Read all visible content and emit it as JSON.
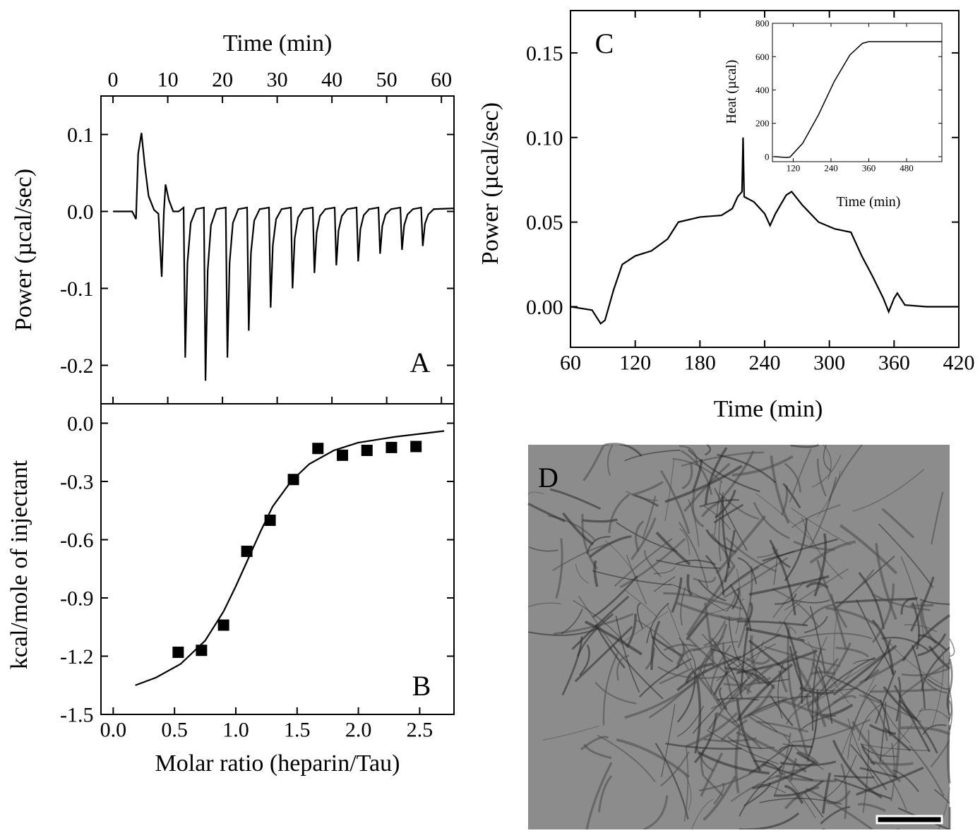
{
  "chart_data": [
    {
      "type": "line",
      "annotation": "A",
      "x_label": "Time (min)",
      "y_label": "Power (µcal/sec)",
      "xlim": [
        -2.2,
        62.3
      ],
      "xticks": [
        0,
        10,
        20,
        30,
        40,
        50,
        60
      ],
      "ylim": [
        -0.25,
        0.15
      ],
      "yticks": [
        0.1,
        {
          "value": 0,
          "label": "0.0"
        },
        -0.1,
        -0.2
      ],
      "series": [
        {
          "color": "#000000",
          "x": [
            0,
            3.5,
            4.2,
            4.6,
            5.2,
            5.8,
            6.5,
            7.5,
            8.3,
            8.9,
            9.3,
            9.6,
            10.2,
            11.0,
            12.0,
            12.9,
            13.2,
            13.6,
            14.2,
            15.2,
            16.6,
            16.9,
            17.3,
            17.9,
            18.9,
            20.6,
            20.9,
            21.3,
            21.9,
            22.9,
            24.5,
            24.8,
            25.2,
            25.8,
            26.8,
            28.5,
            28.8,
            29.2,
            29.8,
            30.8,
            32.5,
            32.8,
            33.2,
            33.8,
            34.8,
            36.5,
            36.8,
            37.2,
            37.8,
            38.8,
            40.5,
            40.8,
            41.2,
            41.8,
            42.8,
            44.5,
            44.8,
            45.2,
            45.8,
            46.8,
            48.5,
            48.8,
            49.2,
            49.8,
            50.8,
            52.5,
            52.8,
            53.2,
            53.8,
            54.8,
            56.3,
            56.6,
            57.0,
            57.6,
            58.6,
            62.3
          ],
          "values": [
            0,
            0,
            -0.01,
            0.075,
            0.102,
            0.06,
            0.02,
            0.002,
            -0.003,
            -0.085,
            0,
            0.035,
            0.015,
            0,
            0,
            0.005,
            -0.19,
            -0.067,
            -0.015,
            0.003,
            0.005,
            -0.22,
            -0.077,
            -0.018,
            0.003,
            0.005,
            -0.19,
            -0.067,
            -0.015,
            0.003,
            0.005,
            -0.155,
            -0.054,
            -0.012,
            0.003,
            0.005,
            -0.125,
            -0.044,
            -0.01,
            0.003,
            0.005,
            -0.1,
            -0.035,
            -0.008,
            0.003,
            0.005,
            -0.08,
            -0.028,
            -0.006,
            0.003,
            0.005,
            -0.07,
            -0.025,
            -0.006,
            0.003,
            0.005,
            -0.065,
            -0.023,
            -0.005,
            0.003,
            0.005,
            -0.055,
            -0.019,
            -0.004,
            0.003,
            0.005,
            -0.05,
            -0.018,
            -0.004,
            0.003,
            0.005,
            -0.045,
            -0.016,
            -0.004,
            0.003,
            0.004
          ]
        }
      ]
    },
    {
      "type": "scatter",
      "annotation": "B",
      "x_label": "Molar ratio (heparin/Tau)",
      "y_label": "kcal/mole of injectant",
      "xlim": [
        -0.1,
        2.78
      ],
      "xticks": [
        {
          "value": 0,
          "label": "0.0"
        },
        0.5,
        {
          "value": 1,
          "label": "1.0"
        },
        1.5,
        {
          "value": 2,
          "label": "2.0"
        },
        2.5
      ],
      "ylim": [
        -1.5,
        0.1
      ],
      "yticks": [
        {
          "value": 0,
          "label": "0.0"
        },
        -0.3,
        -0.6,
        -0.9,
        -1.2,
        -1.5
      ],
      "series": [
        {
          "type": "scatter",
          "color": "#000000",
          "x": [
            0.53,
            0.72,
            0.9,
            1.09,
            1.28,
            1.47,
            1.67,
            1.87,
            2.07,
            2.27,
            2.47
          ],
          "values": [
            -1.18,
            -1.17,
            -1.04,
            -0.66,
            -0.5,
            -0.29,
            -0.13,
            -0.165,
            -0.14,
            -0.125,
            -0.12
          ]
        },
        {
          "type": "line",
          "color": "#000000",
          "x": [
            0.18,
            0.35,
            0.55,
            0.75,
            0.9,
            1.0,
            1.1,
            1.2,
            1.3,
            1.45,
            1.6,
            1.8,
            2.0,
            2.3,
            2.7
          ],
          "values": [
            -1.35,
            -1.31,
            -1.24,
            -1.12,
            -0.97,
            -0.84,
            -0.7,
            -0.56,
            -0.43,
            -0.3,
            -0.21,
            -0.14,
            -0.1,
            -0.07,
            -0.04
          ]
        }
      ]
    },
    {
      "type": "line",
      "annotation": "C",
      "x_label": "Time (min)",
      "y_label": "Power (µcal/sec)",
      "xlim": [
        60,
        420
      ],
      "xticks": [
        60,
        120,
        180,
        240,
        300,
        360,
        420
      ],
      "ylim": [
        -0.024,
        0.175
      ],
      "yticks": [
        0.15,
        {
          "value": 0.1,
          "label": "0.10"
        },
        0.05,
        {
          "value": 0,
          "label": "0.00"
        }
      ],
      "series": [
        {
          "color": "#000000",
          "x": [
            60,
            80,
            88,
            92,
            100,
            108,
            120,
            135,
            150,
            160,
            180,
            200,
            210,
            215,
            219,
            220,
            221,
            230,
            240,
            245,
            250,
            260,
            265,
            275,
            290,
            305,
            320,
            330,
            340,
            350,
            355,
            360,
            363,
            370,
            390,
            420
          ],
          "values": [
            0,
            -0.002,
            -0.01,
            -0.008,
            0.01,
            0.025,
            0.03,
            0.033,
            0.04,
            0.05,
            0.053,
            0.054,
            0.058,
            0.065,
            0.068,
            0.1,
            0.065,
            0.062,
            0.055,
            0.048,
            0.055,
            0.066,
            0.068,
            0.06,
            0.05,
            0.046,
            0.044,
            0.03,
            0.018,
            0.005,
            -0.003,
            0.005,
            0.008,
            0.001,
            0,
            0
          ]
        }
      ]
    },
    {
      "type": "line",
      "x_label": "Time (min)",
      "y_label": "Heat (µcal)",
      "xlim": [
        54,
        592
      ],
      "xticks": [
        120,
        240,
        360,
        480
      ],
      "ylim": [
        -30,
        800
      ],
      "yticks": [
        0,
        200,
        400,
        600,
        800
      ],
      "series": [
        {
          "color": "#000000",
          "x": [
            60,
            100,
            110,
            150,
            200,
            250,
            300,
            340,
            360,
            592
          ],
          "values": [
            0,
            -5,
            -2,
            80,
            250,
            450,
            610,
            680,
            690,
            690
          ]
        }
      ]
    }
  ],
  "image_panel": {
    "label": "D"
  }
}
